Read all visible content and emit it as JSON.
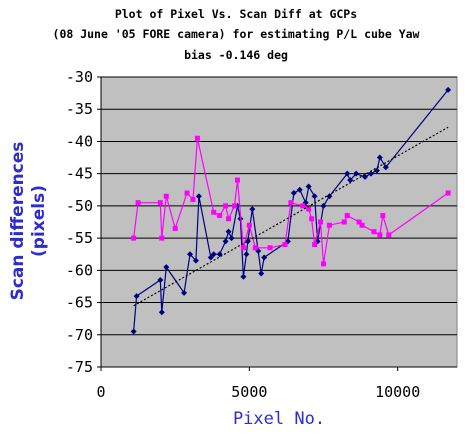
{
  "chart_data": {
    "type": "line",
    "title_lines": [
      "Plot of Pixel Vs. Scan Diff at GCPs",
      "(08 June '05 FORE camera) for estimating P/L cube Yaw",
      "bias -0.146 deg"
    ],
    "xlabel": "Pixel No.",
    "ylabel_lines": [
      "Scan differences",
      "(pixels)"
    ],
    "xlim": [
      0,
      12000
    ],
    "ylim": [
      -75,
      -30
    ],
    "x_ticks": [
      "0",
      "5000",
      "10000"
    ],
    "x_tick_values": [
      0,
      5000,
      10000
    ],
    "y_ticks": [
      "-30",
      "-35",
      "-40",
      "-45",
      "-50",
      "-55",
      "-60",
      "-65",
      "-70",
      "-75"
    ],
    "y_tick_values": [
      -30,
      -35,
      -40,
      -45,
      -50,
      -55,
      -60,
      -65,
      -70,
      -75
    ],
    "grid": true,
    "legend": "none",
    "colors": {
      "plot_bg": "#c0c0c0",
      "series_navy": "#000080",
      "series_magenta": "#ff00ff",
      "trend": "#000000",
      "label_blue": "#2d2dcf"
    },
    "series": [
      {
        "color": "#000080",
        "marker": "diamond",
        "x": [
          1100,
          1200,
          2000,
          2050,
          2200,
          2800,
          3000,
          3200,
          3300,
          3700,
          3800,
          4000,
          4200,
          4300,
          4400,
          4600,
          4700,
          4800,
          4900,
          4950,
          5100,
          5300,
          5400,
          5500,
          6300,
          6500,
          6700,
          6900,
          7000,
          7200,
          7300,
          7500,
          7700,
          8300,
          8400,
          8600,
          8900,
          9100,
          9300,
          9400,
          9600,
          11700
        ],
        "y": [
          -69.5,
          -64,
          -61.5,
          -66.5,
          -59.5,
          -63.5,
          -57.5,
          -58.5,
          -48.5,
          -58,
          -57.5,
          -57.5,
          -55.5,
          -54,
          -55,
          -50,
          -52,
          -61,
          -57.5,
          -55.5,
          -50.5,
          -57,
          -60.5,
          -58,
          -55.5,
          -48,
          -47.5,
          -49.5,
          -47,
          -48.5,
          -55.5,
          -50,
          -48.5,
          -45,
          -46,
          -45,
          -45.5,
          -45,
          -44.5,
          -42.5,
          -44,
          -32
        ]
      },
      {
        "color": "#ff00ff",
        "marker": "square",
        "x": [
          1100,
          1250,
          2000,
          2050,
          2200,
          2500,
          2900,
          3100,
          3250,
          3800,
          4000,
          4200,
          4300,
          4500,
          4600,
          4800,
          5000,
          5200,
          5700,
          6200,
          6400,
          6800,
          7000,
          7100,
          7200,
          7400,
          7500,
          7700,
          8200,
          8300,
          8700,
          8800,
          9200,
          9400,
          9500,
          9700,
          11700
        ],
        "y": [
          -55,
          -49.5,
          -49.5,
          -55,
          -48.5,
          -53.5,
          -48,
          -49,
          -39.5,
          -51,
          -51.5,
          -50,
          -52,
          -50,
          -46,
          -56.5,
          -53,
          -56.5,
          -56.5,
          -56,
          -49.5,
          -50,
          -50.5,
          -52,
          -56,
          -52.5,
          -59,
          -53,
          -52.5,
          -51.5,
          -52.5,
          -53,
          -54,
          -54.5,
          -51.5,
          -54.5,
          -48
        ]
      }
    ],
    "trendline": {
      "x": [
        1100,
        11700
      ],
      "y": [
        -65.5,
        -37.8
      ]
    }
  }
}
